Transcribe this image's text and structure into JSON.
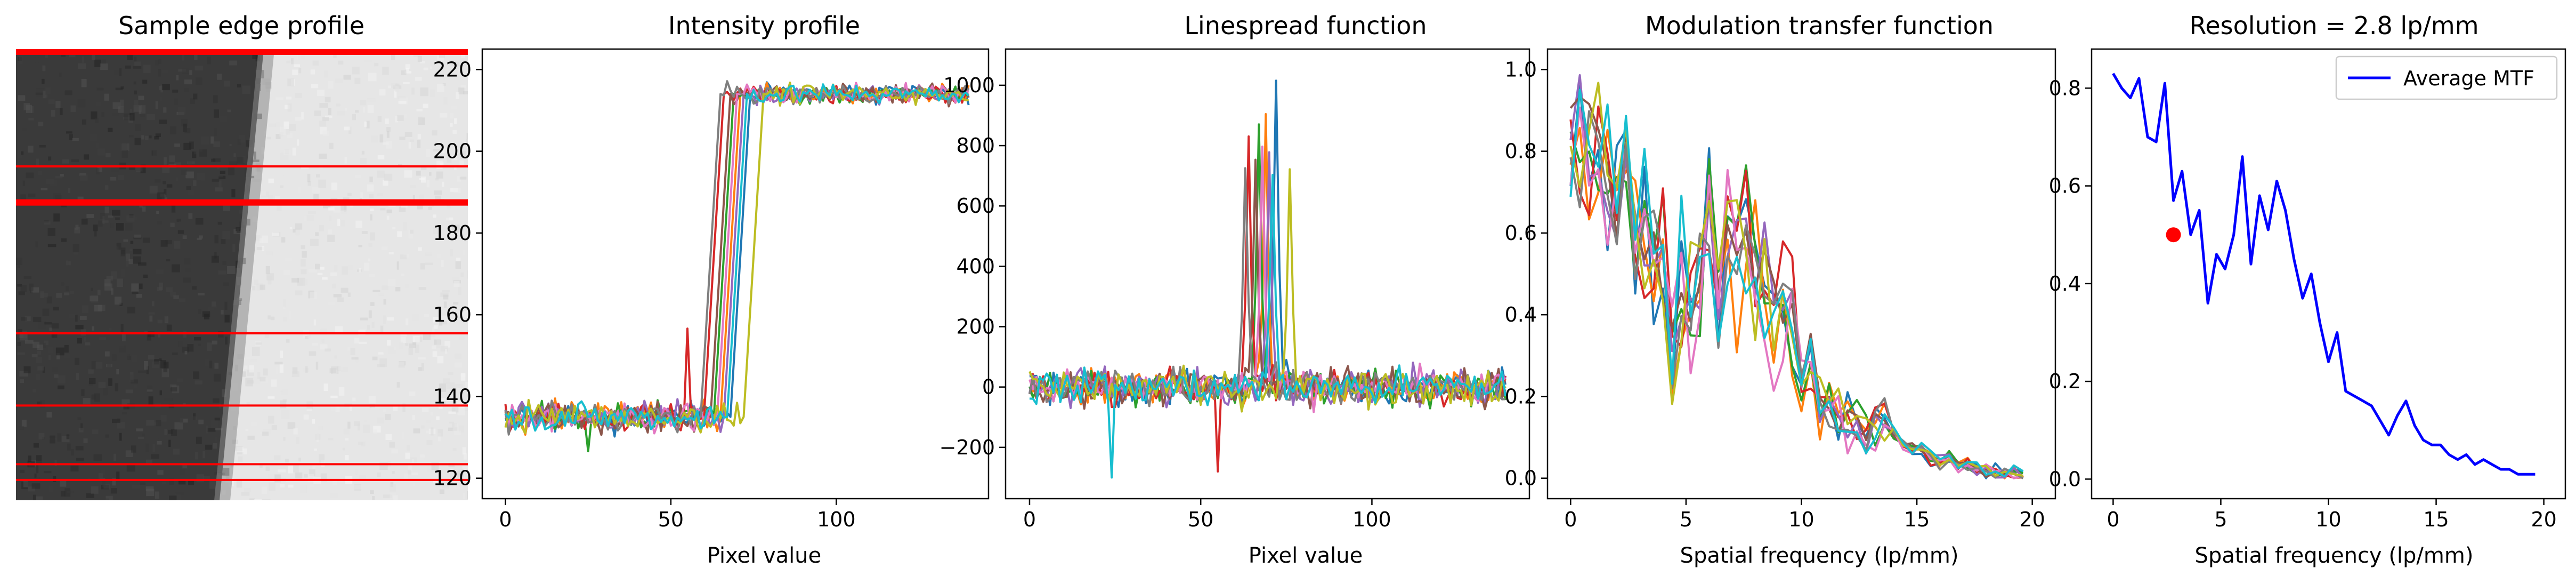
{
  "figure": {
    "panels": [
      {
        "id": "p0",
        "title": "Sample edge profile"
      },
      {
        "id": "p1",
        "title": "Intensity profile",
        "xlabel": "Pixel value"
      },
      {
        "id": "p2",
        "title": "Linespread function",
        "xlabel": "Pixel value"
      },
      {
        "id": "p3",
        "title": "Modulation transfer function",
        "xlabel": "Spatial frequency (lp/mm)"
      },
      {
        "id": "p4",
        "title": "Resolution = 2.8 lp/mm",
        "xlabel": "Spatial frequency (lp/mm)"
      }
    ]
  },
  "image_panel": {
    "dark_color": "#3a3a3a",
    "light_color": "#e6e6e6",
    "line_color": "#ff0000",
    "line_positions_frac": [
      0.0,
      0.26,
      0.34,
      0.63,
      0.79,
      0.92,
      0.955
    ],
    "thick_lines_frac": [
      0.0,
      0.34
    ]
  },
  "chart_data": [
    {
      "type": "line",
      "title": "Intensity profile",
      "xlabel": "Pixel value",
      "ylabel": "",
      "xlim": [
        -7,
        146
      ],
      "ylim": [
        115,
        225
      ],
      "xticks": [
        0,
        50,
        100
      ],
      "yticks": [
        120,
        140,
        160,
        180,
        200,
        220
      ],
      "legend": "none",
      "series_count": 10,
      "x_range": [
        0,
        140
      ],
      "edge_positions": [
        72,
        69,
        67,
        64,
        70,
        66,
        68,
        63,
        76,
        71
      ],
      "low_level": 135,
      "high_level": 214,
      "palette": [
        "#1f77b4",
        "#ff7f0e",
        "#2ca02c",
        "#d62728",
        "#9467bd",
        "#8c564b",
        "#e377c2",
        "#7f7f7f",
        "#bcbd22",
        "#17becf"
      ]
    },
    {
      "type": "line",
      "title": "Linespread function",
      "xlabel": "Pixel value",
      "ylabel": "",
      "xlim": [
        -7,
        146
      ],
      "ylim": [
        -370,
        1120
      ],
      "xticks": [
        0,
        50,
        100
      ],
      "yticks": [
        -200,
        0,
        200,
        400,
        600,
        800,
        1000
      ],
      "legend": "none",
      "series_count": 10,
      "peaks": [
        1060,
        900,
        880,
        800,
        790,
        760,
        740,
        720,
        700,
        680
      ],
      "noise_amplitude": 90
    },
    {
      "type": "line",
      "title": "Modulation transfer function",
      "xlabel": "Spatial frequency (lp/mm)",
      "ylabel": "",
      "xlim": [
        -1,
        21
      ],
      "ylim": [
        -0.05,
        1.05
      ],
      "xticks": [
        0,
        5,
        10,
        15,
        20
      ],
      "yticks": [
        0.0,
        0.2,
        0.4,
        0.6,
        0.8,
        1.0
      ],
      "legend": "none",
      "series_count": 10
    },
    {
      "type": "line",
      "title": "Resolution = 2.8 lp/mm",
      "xlabel": "Spatial frequency (lp/mm)",
      "ylabel": "",
      "xlim": [
        -1,
        21
      ],
      "ylim": [
        -0.04,
        0.88
      ],
      "xticks": [
        0,
        5,
        10,
        15,
        20
      ],
      "yticks": [
        0.0,
        0.2,
        0.4,
        0.6,
        0.8
      ],
      "legend": "top-right",
      "series": [
        {
          "name": "Average MTF",
          "color": "#0000ff",
          "x": [
            0,
            0.4,
            0.8,
            1.2,
            1.6,
            2.0,
            2.4,
            2.8,
            3.2,
            3.6,
            4.0,
            4.4,
            4.8,
            5.2,
            5.6,
            6.0,
            6.4,
            6.8,
            7.2,
            7.6,
            8.0,
            8.4,
            8.8,
            9.2,
            9.6,
            10.0,
            10.4,
            10.8,
            11.2,
            11.6,
            12.0,
            12.4,
            12.8,
            13.2,
            13.6,
            14.0,
            14.4,
            14.8,
            15.2,
            15.6,
            16.0,
            16.4,
            16.8,
            17.2,
            17.6,
            18.0,
            18.4,
            18.8,
            19.2,
            19.6
          ],
          "y": [
            0.83,
            0.8,
            0.78,
            0.82,
            0.7,
            0.69,
            0.81,
            0.57,
            0.63,
            0.5,
            0.55,
            0.36,
            0.46,
            0.43,
            0.5,
            0.66,
            0.44,
            0.58,
            0.51,
            0.61,
            0.55,
            0.45,
            0.37,
            0.42,
            0.32,
            0.24,
            0.3,
            0.18,
            0.17,
            0.16,
            0.15,
            0.12,
            0.09,
            0.13,
            0.16,
            0.11,
            0.08,
            0.07,
            0.07,
            0.05,
            0.04,
            0.05,
            0.03,
            0.04,
            0.03,
            0.02,
            0.02,
            0.01,
            0.01,
            0.01
          ]
        }
      ],
      "marker": {
        "x": 2.8,
        "y": 0.5,
        "color": "#ff0000"
      }
    }
  ]
}
